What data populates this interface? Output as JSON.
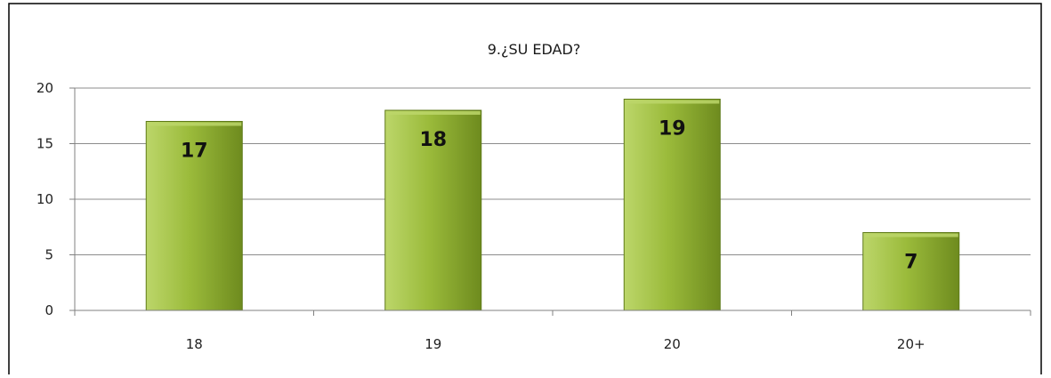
{
  "chart_data": {
    "type": "bar",
    "title": "9.¿SU EDAD?",
    "xlabel": "",
    "ylabel": "",
    "categories": [
      "18",
      "19",
      "20",
      "20+"
    ],
    "values": [
      17,
      18,
      19,
      7
    ],
    "data_labels": [
      "17",
      "18",
      "19",
      "7"
    ],
    "yticks": [
      0,
      5,
      10,
      15,
      20
    ],
    "ytick_labels": [
      "0",
      "5",
      "10",
      "15",
      "20"
    ],
    "ylim": [
      0,
      20
    ],
    "grid": true,
    "legend": "none",
    "colors": {
      "bar_light": "#bcd66a",
      "bar_mid": "#9bbb3b",
      "bar_dark": "#6e8b1e",
      "bar_outline": "#5f7a18",
      "grid": "#8c8c8c",
      "frame": "#000000"
    }
  }
}
